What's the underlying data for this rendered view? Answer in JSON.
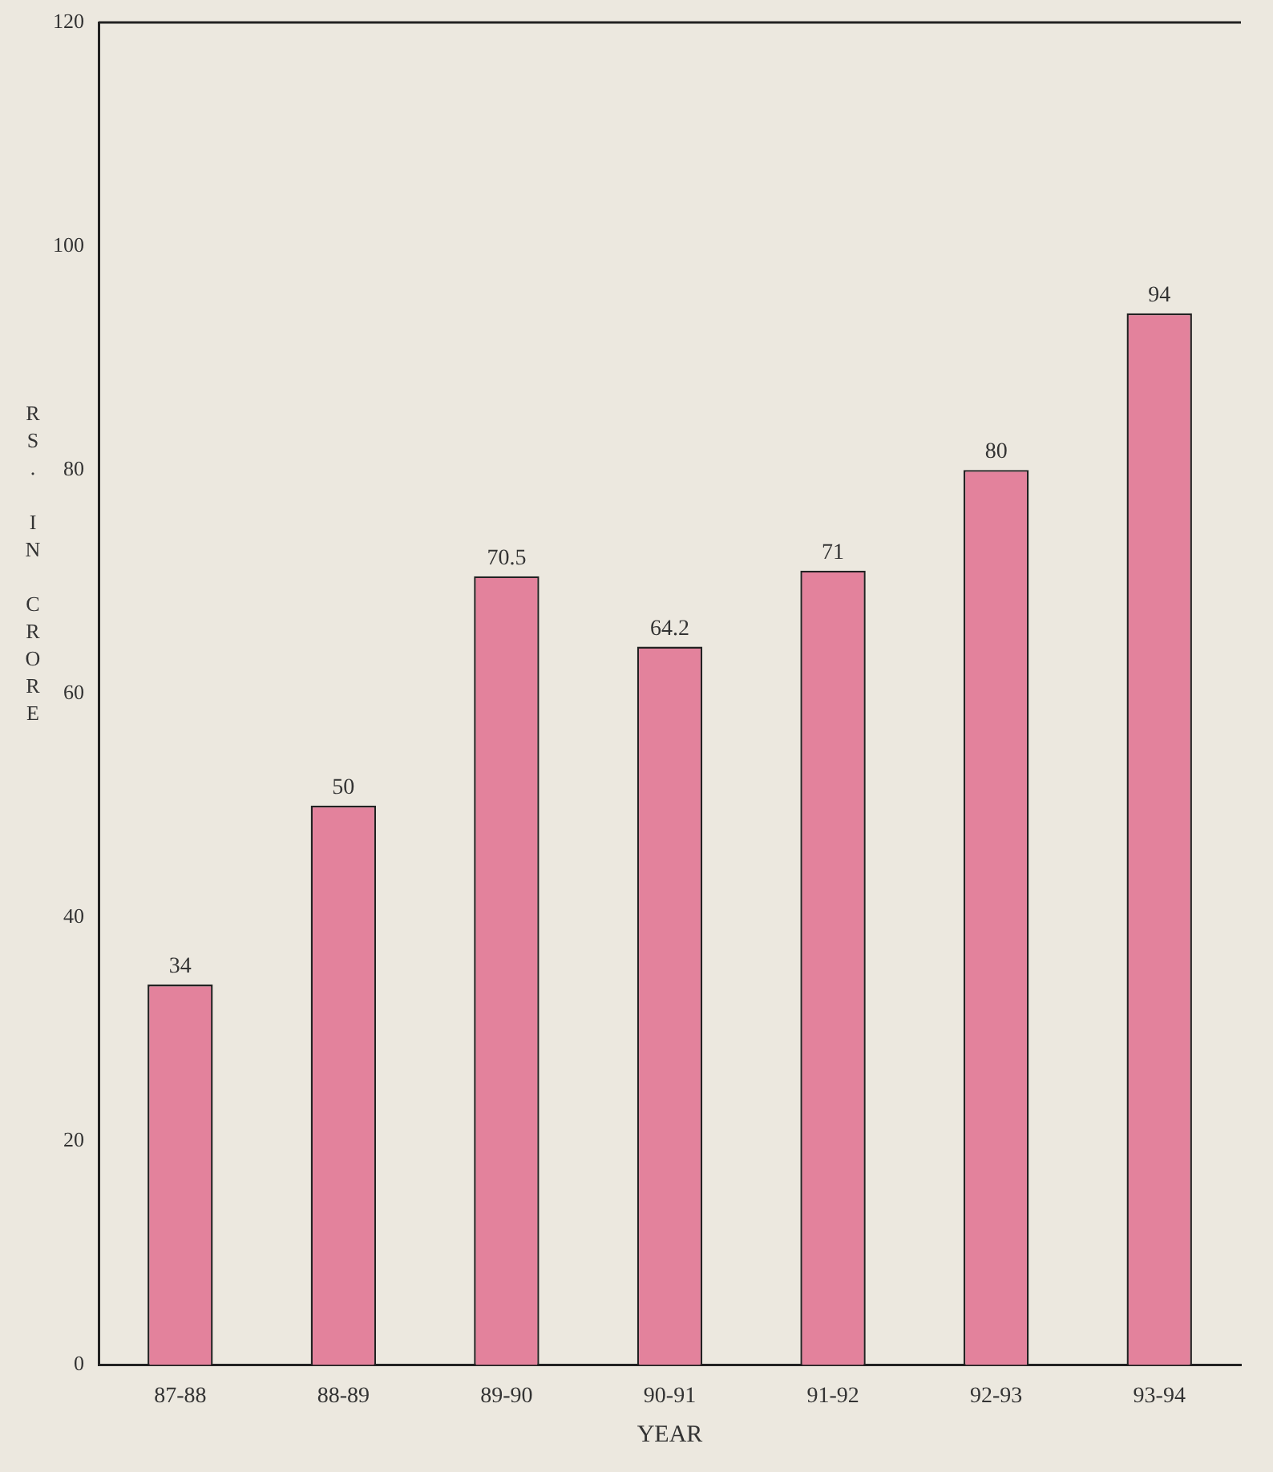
{
  "chart_data": {
    "type": "bar",
    "xlabel": "YEAR",
    "ylabel": "RS. IN CRORE",
    "categories": [
      "87-88",
      "88-89",
      "89-90",
      "90-91",
      "91-92",
      "92-93",
      "93-94"
    ],
    "values": [
      34,
      50,
      70.5,
      64.2,
      71,
      80,
      94
    ],
    "color": "#e3829c",
    "ylim": [
      0,
      120
    ],
    "yticks": [
      0,
      20,
      40,
      60,
      80,
      100,
      120
    ],
    "grid": false,
    "legend": false,
    "data_labels": true
  }
}
